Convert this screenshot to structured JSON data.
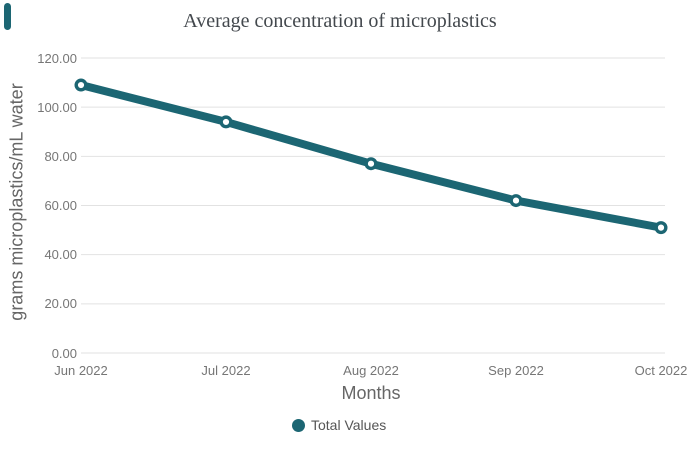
{
  "chart_data": {
    "type": "line",
    "title": "Average concentration of microplastics",
    "xlabel": "Months",
    "ylabel": "grams microplastics/mL water",
    "categories": [
      "Jun 2022",
      "Jul 2022",
      "Aug 2022",
      "Sep 2022",
      "Oct 2022"
    ],
    "series": [
      {
        "name": "Total Values",
        "values": [
          109,
          94,
          77,
          62,
          51
        ]
      }
    ],
    "ylim": [
      0,
      120
    ],
    "ytick_step": 20,
    "ytick_labels": [
      "0.00",
      "20.00",
      "40.00",
      "60.00",
      "80.00",
      "100.00",
      "120.00"
    ],
    "grid": "horizontal-only",
    "legend_position": "bottom-center",
    "marker_style": "open-circle"
  },
  "legend": {
    "items": [
      {
        "label": "Total Values"
      }
    ]
  },
  "colors": {
    "series_teal": "#1c6673",
    "gridline": "#e2e2e2",
    "tick_label": "#767676",
    "axis_title": "#666666",
    "title_text": "#43484d",
    "legend_text": "#565656",
    "marker_fill": "#ffffff",
    "background": "#ffffff"
  }
}
